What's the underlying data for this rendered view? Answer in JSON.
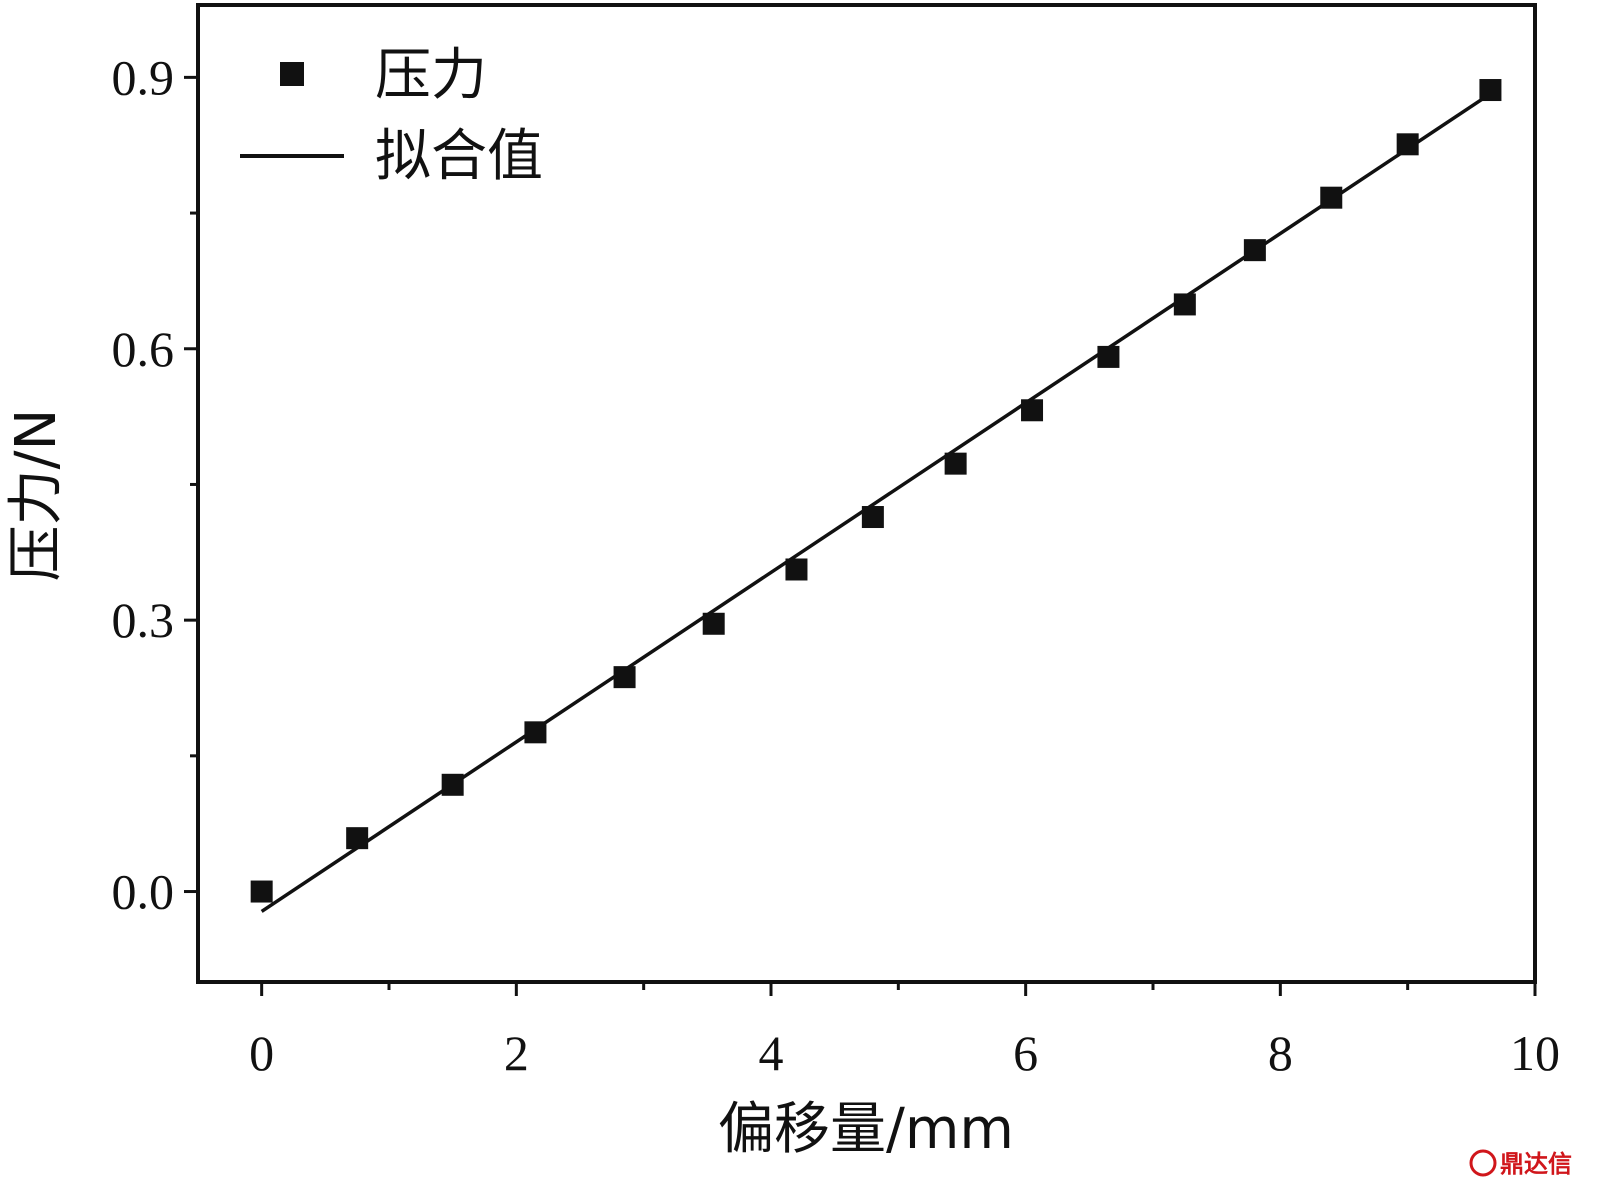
{
  "chart_data": {
    "type": "scatter",
    "xlabel": "偏移量/mm",
    "ylabel": "压力/N",
    "xlim": [
      -0.5,
      10
    ],
    "ylim": [
      -0.1,
      0.98
    ],
    "xticks": [
      0,
      2,
      4,
      6,
      8,
      10
    ],
    "yticks": [
      0.0,
      0.3,
      0.6,
      0.9
    ],
    "xtick_labels": [
      "0",
      "2",
      "4",
      "6",
      "8",
      "10"
    ],
    "ytick_labels": [
      "0.0",
      "0.3",
      "0.6",
      "0.9"
    ],
    "grid": false,
    "legend_position": "top-left",
    "series": [
      {
        "name": "压力",
        "marker": "square",
        "color": "#111111",
        "x": [
          0,
          0.75,
          1.5,
          2.15,
          2.85,
          3.55,
          4.2,
          4.8,
          5.45,
          6.05,
          6.65,
          7.25,
          7.8,
          8.4,
          9.0,
          9.65
        ],
        "y": [
          0.0,
          0.059,
          0.118,
          0.176,
          0.237,
          0.296,
          0.356,
          0.414,
          0.473,
          0.532,
          0.591,
          0.649,
          0.709,
          0.767,
          0.826,
          0.886
        ]
      },
      {
        "name": "拟合值",
        "type": "line",
        "color": "#111111",
        "x": [
          0,
          9.65
        ],
        "y": [
          -0.022,
          0.882
        ]
      }
    ]
  },
  "watermark": {
    "text": "鼎达信",
    "color": "#d0161b"
  }
}
